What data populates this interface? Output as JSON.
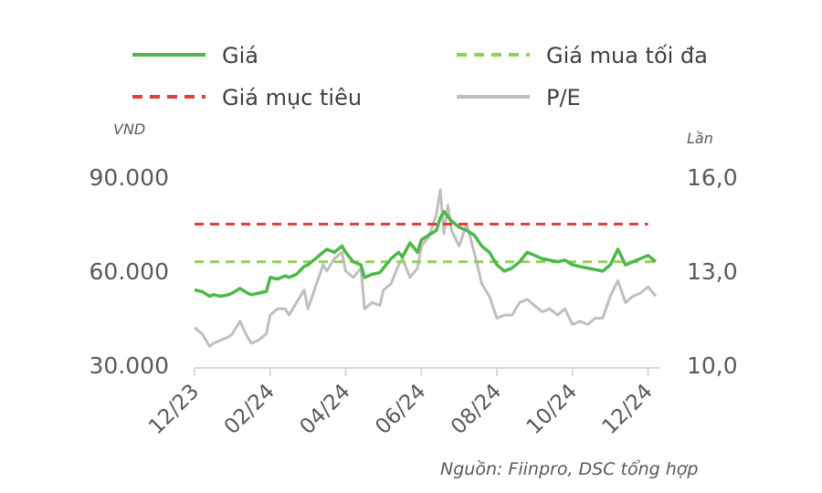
{
  "chart_data": {
    "type": "line",
    "legend": [
      {
        "key": "gia",
        "label": "Giá",
        "color": "#4db848",
        "style": "solid"
      },
      {
        "key": "gia_mua_toi_da",
        "label": "Giá mua tối đa",
        "color": "#92d050",
        "style": "dashed"
      },
      {
        "key": "gia_muc_tieu",
        "label": "Giá mục tiêu",
        "color": "#e0403a",
        "style": "dashed"
      },
      {
        "key": "pe",
        "label": "P/E",
        "color": "#bfbfbf",
        "style": "solid"
      }
    ],
    "legend_position": "top",
    "left_axis": {
      "unit": "VND",
      "ticks": [
        "90.000",
        "60.000",
        "30.000"
      ],
      "ylim": [
        30000,
        90000
      ]
    },
    "right_axis": {
      "unit": "Lần",
      "ticks": [
        "16,0",
        "13,0",
        "10,0"
      ],
      "ylim": [
        10,
        16
      ]
    },
    "x_ticks": [
      "12/23",
      "02/24",
      "04/24",
      "06/24",
      "08/24",
      "10/24",
      "12/24"
    ],
    "x_tick_index": [
      0,
      2,
      4,
      6,
      8,
      10,
      12
    ],
    "x_range": [
      0,
      12.3
    ],
    "grid": false,
    "series": [
      {
        "key": "gia",
        "axis": "left",
        "x": [
          0,
          0.2,
          0.4,
          0.5,
          0.7,
          0.9,
          1.0,
          1.2,
          1.4,
          1.5,
          1.7,
          1.9,
          2.0,
          2.2,
          2.4,
          2.5,
          2.7,
          2.9,
          3.0,
          3.2,
          3.4,
          3.5,
          3.7,
          3.9,
          4.0,
          4.2,
          4.4,
          4.5,
          4.7,
          4.9,
          5.0,
          5.2,
          5.4,
          5.5,
          5.7,
          5.9,
          6.0,
          6.2,
          6.4,
          6.5,
          6.6,
          6.8,
          7.0,
          7.2,
          7.4,
          7.6,
          7.8,
          8.0,
          8.2,
          8.4,
          8.6,
          8.8,
          9.0,
          9.2,
          9.4,
          9.6,
          9.8,
          10.0,
          10.2,
          10.4,
          10.6,
          10.8,
          11.0,
          11.2,
          11.4,
          11.6,
          11.8,
          12.0,
          12.2
        ],
        "y": [
          54000,
          53500,
          52000,
          52500,
          52000,
          52500,
          53000,
          54500,
          53000,
          52500,
          53000,
          53500,
          58000,
          57500,
          58500,
          58000,
          59000,
          61500,
          62000,
          64000,
          66000,
          67000,
          66000,
          68000,
          66000,
          63000,
          62000,
          58000,
          59000,
          59500,
          61000,
          64000,
          66000,
          64500,
          69000,
          66000,
          70000,
          71500,
          73000,
          77000,
          79000,
          76000,
          74000,
          73000,
          71500,
          68000,
          66000,
          62000,
          60000,
          61000,
          63000,
          66000,
          65000,
          64000,
          63500,
          63000,
          63500,
          62000,
          61500,
          61000,
          60500,
          60000,
          62000,
          67000,
          62000,
          63000,
          64000,
          65000,
          63000
        ]
      },
      {
        "key": "pe",
        "axis": "right",
        "x": [
          0,
          0.2,
          0.4,
          0.5,
          0.7,
          0.9,
          1.0,
          1.2,
          1.4,
          1.5,
          1.7,
          1.9,
          2.0,
          2.2,
          2.4,
          2.5,
          2.7,
          2.9,
          3.0,
          3.2,
          3.4,
          3.5,
          3.7,
          3.9,
          4.0,
          4.2,
          4.4,
          4.5,
          4.7,
          4.9,
          5.0,
          5.2,
          5.4,
          5.5,
          5.7,
          5.9,
          6.0,
          6.2,
          6.4,
          6.5,
          6.6,
          6.7,
          6.8,
          7.0,
          7.2,
          7.4,
          7.6,
          7.8,
          8.0,
          8.2,
          8.4,
          8.6,
          8.8,
          9.0,
          9.2,
          9.4,
          9.6,
          9.8,
          10.0,
          10.2,
          10.4,
          10.6,
          10.8,
          11.0,
          11.2,
          11.4,
          11.6,
          11.8,
          12.0,
          12.2
        ],
        "y": [
          11.2,
          11.0,
          10.6,
          10.7,
          10.8,
          10.9,
          11.0,
          11.4,
          10.9,
          10.7,
          10.8,
          11.0,
          11.6,
          11.8,
          11.8,
          11.6,
          12.0,
          12.4,
          11.8,
          12.5,
          13.2,
          13.0,
          13.4,
          13.6,
          13.0,
          12.8,
          13.1,
          11.8,
          12.0,
          11.9,
          12.4,
          12.6,
          13.2,
          13.4,
          12.8,
          13.1,
          13.8,
          14.1,
          14.8,
          15.6,
          14.2,
          15.1,
          14.3,
          13.8,
          14.5,
          13.6,
          12.6,
          12.2,
          11.5,
          11.6,
          11.6,
          12.0,
          12.1,
          11.9,
          11.7,
          11.8,
          11.6,
          11.8,
          11.3,
          11.4,
          11.3,
          11.5,
          11.5,
          12.2,
          12.7,
          12.0,
          12.2,
          12.3,
          12.5,
          12.2
        ]
      }
    ],
    "reference_lines": [
      {
        "key": "gia_muc_tieu",
        "axis": "left",
        "value": 75000,
        "x_range": [
          0,
          12
        ]
      },
      {
        "key": "gia_mua_toi_da",
        "axis": "left",
        "value": 63000,
        "x_range": [
          0,
          12.2
        ]
      }
    ]
  },
  "source_note": "Nguồn: Fiinpro, DSC tổng hợp"
}
